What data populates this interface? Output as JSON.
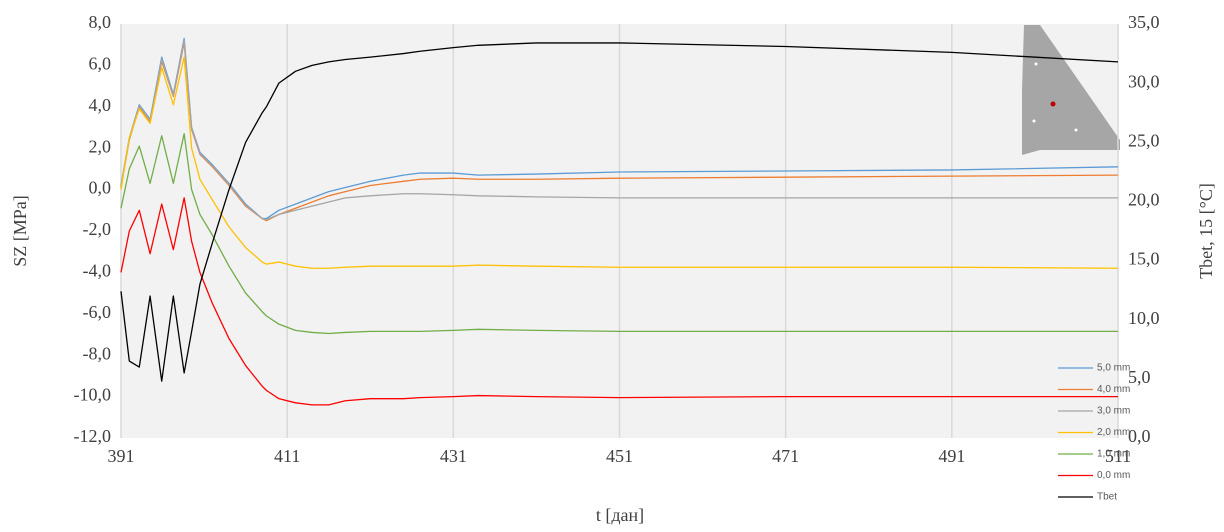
{
  "chart_data": {
    "type": "line",
    "x_label": "t [дан]",
    "y_label": "SZ [MPa]",
    "y2_label": "Tbet, 15 [°C]",
    "x": [
      391,
      392,
      393.2,
      394.5,
      395.9,
      397.3,
      398.6,
      399.5,
      400.5,
      402,
      404,
      406,
      408,
      408.5,
      410,
      412,
      414,
      416,
      418,
      421,
      425,
      427,
      431,
      434,
      441,
      451,
      471,
      491,
      511
    ],
    "series": [
      {
        "name": "5,0 mm",
        "color": "#5b9bd5",
        "values": [
          0.2,
          2.5,
          4.1,
          3.4,
          6.4,
          4.6,
          7.3,
          3.0,
          1.8,
          1.2,
          0.3,
          -0.7,
          -1.4,
          -1.4,
          -1.0,
          -0.7,
          -0.4,
          -0.1,
          0.1,
          0.4,
          0.7,
          0.8,
          0.8,
          0.7,
          0.75,
          0.85,
          0.9,
          0.95,
          1.1
        ]
      },
      {
        "name": "4,0 mm",
        "color": "#ed7d31",
        "values": [
          0.1,
          2.4,
          4.0,
          3.3,
          6.2,
          4.5,
          7.1,
          2.9,
          1.7,
          1.1,
          0.2,
          -0.8,
          -1.4,
          -1.5,
          -1.2,
          -0.9,
          -0.6,
          -0.3,
          -0.1,
          0.2,
          0.4,
          0.5,
          0.55,
          0.5,
          0.5,
          0.55,
          0.6,
          0.65,
          0.7
        ]
      },
      {
        "name": "3,0 mm",
        "color": "#a5a5a5",
        "values": [
          0.15,
          2.45,
          4.05,
          3.35,
          6.3,
          4.55,
          7.2,
          2.95,
          1.75,
          1.15,
          0.25,
          -0.75,
          -1.4,
          -1.45,
          -1.2,
          -1.0,
          -0.8,
          -0.6,
          -0.4,
          -0.3,
          -0.2,
          -0.2,
          -0.25,
          -0.3,
          -0.35,
          -0.4,
          -0.4,
          -0.4,
          -0.4
        ]
      },
      {
        "name": "2,0 mm",
        "color": "#ffc000",
        "values": [
          0.0,
          2.5,
          3.9,
          3.2,
          5.9,
          4.1,
          6.4,
          2.0,
          0.5,
          -0.5,
          -1.8,
          -2.8,
          -3.5,
          -3.6,
          -3.5,
          -3.7,
          -3.8,
          -3.8,
          -3.75,
          -3.7,
          -3.7,
          -3.7,
          -3.7,
          -3.65,
          -3.7,
          -3.75,
          -3.75,
          -3.75,
          -3.8
        ]
      },
      {
        "name": "1,0 mm",
        "color": "#70ad47",
        "values": [
          -0.9,
          1.0,
          2.1,
          0.3,
          2.6,
          0.3,
          2.7,
          0.0,
          -1.2,
          -2.2,
          -3.7,
          -5.0,
          -5.9,
          -6.1,
          -6.5,
          -6.8,
          -6.9,
          -6.95,
          -6.9,
          -6.85,
          -6.85,
          -6.85,
          -6.8,
          -6.75,
          -6.8,
          -6.85,
          -6.85,
          -6.85,
          -6.85
        ]
      },
      {
        "name": "0,0 mm",
        "color": "#ff0000",
        "values": [
          -4.0,
          -2.0,
          -1.0,
          -3.1,
          -0.7,
          -2.9,
          -0.4,
          -2.5,
          -4.0,
          -5.5,
          -7.2,
          -8.5,
          -9.5,
          -9.7,
          -10.1,
          -10.3,
          -10.4,
          -10.4,
          -10.2,
          -10.1,
          -10.1,
          -10.05,
          -10.0,
          -9.95,
          -10.0,
          -10.05,
          -10.0,
          -10.0,
          -10.0
        ]
      },
      {
        "name": "Tbet",
        "color": "#000000",
        "axis": "y2",
        "values": [
          12.4,
          6.5,
          6.0,
          12.0,
          4.8,
          12.0,
          5.5,
          9.0,
          13.0,
          16.5,
          21.0,
          25.0,
          27.5,
          28.0,
          30.0,
          31.0,
          31.5,
          31.8,
          32.0,
          32.2,
          32.5,
          32.7,
          33.0,
          33.2,
          33.4,
          33.4,
          33.1,
          32.6,
          31.8
        ]
      }
    ],
    "xlim": [
      391,
      511
    ],
    "xticks": [
      391,
      411,
      431,
      451,
      471,
      491,
      511
    ],
    "ylim": [
      -12,
      8
    ],
    "yticks": [
      {
        "value": -12,
        "label": "-12,0"
      },
      {
        "value": -10,
        "label": "-10,0"
      },
      {
        "value": -8,
        "label": "-8,0"
      },
      {
        "value": -6,
        "label": "-6,0"
      },
      {
        "value": -4,
        "label": "-4,0"
      },
      {
        "value": -2,
        "label": "-2,0"
      },
      {
        "value": 0,
        "label": "0,0"
      },
      {
        "value": 2,
        "label": "2,0"
      },
      {
        "value": 4,
        "label": "4,0"
      },
      {
        "value": 6,
        "label": "6,0"
      },
      {
        "value": 8,
        "label": "8,0"
      }
    ],
    "y2lim": [
      0,
      35
    ],
    "y2ticks": [
      {
        "value": 0,
        "label": "0,0"
      },
      {
        "value": 5,
        "label": "5,0"
      },
      {
        "value": 10,
        "label": "10,0"
      },
      {
        "value": 15,
        "label": "15,0"
      },
      {
        "value": 20,
        "label": "20,0"
      },
      {
        "value": 25,
        "label": "25,0"
      },
      {
        "value": 30,
        "label": "30,0"
      },
      {
        "value": 35,
        "label": "35,0"
      }
    ],
    "grid": "x",
    "legend": "lower right"
  }
}
